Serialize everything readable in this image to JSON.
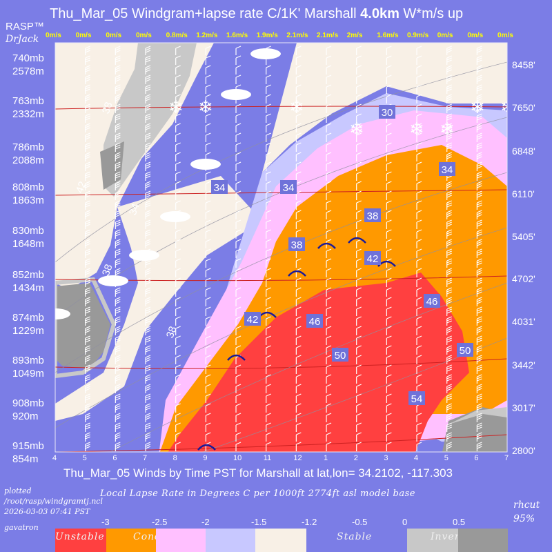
{
  "header": {
    "title_pre": "Thu_Mar_05 Windgram+lapse rate C/1K'  Marshall ",
    "title_bold": "4.0km",
    "title_post": "  W*m/s up",
    "logo": "RASP™",
    "author": "DrJack"
  },
  "chart_data": {
    "type": "heatmap",
    "title": "Thu_Mar_05 Windgram+lapse rate C/1K'  Marshall 4.0km  W*m/s up",
    "xlabel": "Thu_Mar_05 Winds by Time PST for Marshall at lat,lon= 34.2102, -117.303",
    "x_ticks": [
      "4",
      "5",
      "6",
      "7",
      "8",
      "9",
      "10",
      "11",
      "12",
      "1",
      "2",
      "3",
      "4",
      "5",
      "6",
      "7"
    ],
    "w_star": [
      "0m/s",
      "0m/s",
      "0m/s",
      "0m/s",
      "0.8m/s",
      "1.2m/s",
      "1.6m/s",
      "1.9m/s",
      "2.1m/s",
      "2.1m/s",
      "2m/s",
      "1.6m/s",
      "0.9m/s",
      "0m/s",
      "0m/s",
      "0m/s"
    ],
    "left_axis": [
      {
        "mb": "740mb",
        "m": "2578m"
      },
      {
        "mb": "763mb",
        "m": "2332m"
      },
      {
        "mb": "786mb",
        "m": "2088m"
      },
      {
        "mb": "808mb",
        "m": "1863m"
      },
      {
        "mb": "830mb",
        "m": "1648m"
      },
      {
        "mb": "852mb",
        "m": "1434m"
      },
      {
        "mb": "874mb",
        "m": "1229m"
      },
      {
        "mb": "893mb",
        "m": "1049m"
      },
      {
        "mb": "908mb",
        "m": "920m"
      },
      {
        "mb": "915mb",
        "m": "854m"
      }
    ],
    "right_axis": [
      "8458'",
      "7650'",
      "6848'",
      "6110'",
      "5405'",
      "4702'",
      "4031'",
      "3442'",
      "3017'",
      "2800'"
    ],
    "isotherm_labels": [
      "30",
      "34",
      "34",
      "34",
      "34",
      "38",
      "38",
      "38",
      "38",
      "38",
      "42",
      "42",
      "42",
      "46",
      "46",
      "50",
      "50",
      "54"
    ],
    "legend": {
      "ticks": [
        "-3",
        "-2.5",
        "-2",
        "-1.5",
        "-1.2",
        "-0.5",
        "0",
        "0.5"
      ],
      "categories": [
        "Unstable",
        "Conditional Instability",
        "",
        "Stable",
        "Inverted"
      ]
    },
    "colors": {
      "unstable": "#ff4040",
      "conditional": "#ff9900",
      "pink": "#ffc0ff",
      "stable_light": "#f8f0e6",
      "lavender": "#c8c8ff",
      "stable": "#7b7de6",
      "inverted_light": "#c8c8c8",
      "inverted": "#999999"
    }
  },
  "footer": {
    "plotted_1": "plotted",
    "plotted_2": "/root/rasp/windgramtj.ncl",
    "plotted_3": "2026-03-03 07:41 PST",
    "gavatron": "gavatron",
    "caption": "Local Lapse Rate in Degrees C per 1000ft  2774ft asl model base",
    "rhcut_1": "rhcut",
    "rhcut_2": "95%"
  }
}
